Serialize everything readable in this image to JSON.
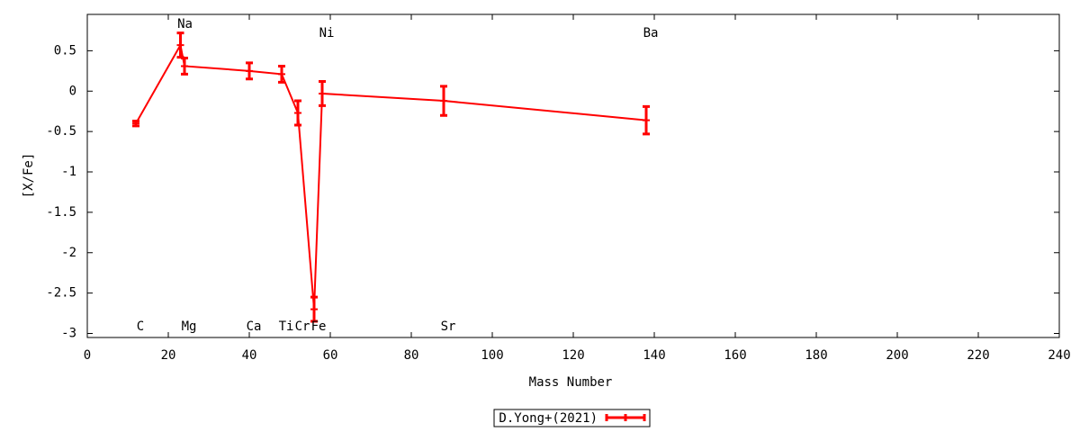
{
  "chart_data": {
    "type": "errorbar-line",
    "xlabel": "Mass Number",
    "ylabel": "[X/Fe]",
    "xlim": [
      0,
      240
    ],
    "xticks": [
      0,
      20,
      40,
      60,
      80,
      100,
      120,
      140,
      160,
      180,
      200,
      220,
      240
    ],
    "ylim": [
      -3.05,
      0.95
    ],
    "yticks": [
      0.5,
      0,
      -0.5,
      -1,
      -1.5,
      -2,
      -2.5,
      -3
    ],
    "series": [
      {
        "name": "D.Yong+(2021)",
        "color": "#ff0000",
        "x": [
          12,
          23,
          24,
          40,
          48,
          52,
          56,
          58,
          88,
          138
        ],
        "values": [
          -0.4,
          0.57,
          0.31,
          0.25,
          0.21,
          -0.27,
          -2.7,
          -0.03,
          -0.12,
          -0.36
        ],
        "errors": [
          0.03,
          0.15,
          0.1,
          0.1,
          0.1,
          0.15,
          0.15,
          0.15,
          0.18,
          0.17
        ]
      }
    ],
    "annotations": [
      "C",
      "Na",
      "Mg",
      "Ca",
      "Ti",
      "Cr",
      "Fe",
      "Ni",
      "Sr",
      "Ba"
    ],
    "legend": "bottom-center"
  }
}
